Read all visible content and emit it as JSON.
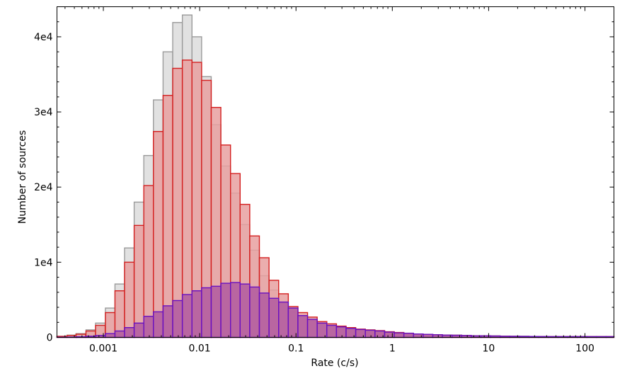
{
  "chart_data": {
    "type": "bar",
    "title": "",
    "xlabel": "Rate (c/s)",
    "ylabel": "Number of sources",
    "x_scale": "log",
    "xlim": [
      0.00033,
      200
    ],
    "ylim": [
      0,
      44000
    ],
    "grid": false,
    "bin_width_dex": 0.1,
    "x_ticks": [
      {
        "value": 0.001,
        "label": "0.001"
      },
      {
        "value": 0.01,
        "label": "0.01"
      },
      {
        "value": 0.1,
        "label": "0.1"
      },
      {
        "value": 1,
        "label": "1"
      },
      {
        "value": 10,
        "label": "10"
      },
      {
        "value": 100,
        "label": "100"
      }
    ],
    "y_ticks": [
      {
        "value": 0,
        "label": "0"
      },
      {
        "value": 10000,
        "label": "1e4"
      },
      {
        "value": 20000,
        "label": "2e4"
      },
      {
        "value": 30000,
        "label": "3e4"
      },
      {
        "value": 40000,
        "label": "4e4"
      }
    ],
    "bin_lefts": [
      0.00033,
      0.00042,
      0.00052,
      0.00066,
      0.00083,
      0.00105,
      0.00132,
      0.00166,
      0.00209,
      0.00263,
      0.00331,
      0.00417,
      0.00525,
      0.00661,
      0.00832,
      0.01047,
      0.01318,
      0.0166,
      0.0209,
      0.0263,
      0.0331,
      0.0417,
      0.0525,
      0.0661,
      0.0832,
      0.1047,
      0.1318,
      0.166,
      0.209,
      0.263,
      0.331,
      0.417,
      0.525,
      0.661,
      0.832,
      1.047,
      1.318,
      1.66,
      2.09,
      2.63,
      3.31,
      4.17,
      5.25,
      6.61,
      8.32,
      10.47,
      13.18,
      16.6,
      20.9,
      26.3,
      33.1,
      41.7,
      52.5,
      66.1,
      83.2,
      104.7,
      131.8,
      166
    ],
    "series": [
      {
        "fill": "#dcdcdc",
        "stroke": "#9a9a9a",
        "values": [
          150,
          300,
          500,
          1000,
          1900,
          3900,
          7100,
          11900,
          18000,
          24200,
          31600,
          38000,
          41900,
          42900,
          40000,
          34700,
          28300,
          22800,
          19200,
          15000,
          11600,
          8200,
          6300,
          4500,
          3400,
          2700,
          2200,
          1800,
          1500,
          1300,
          1150,
          1050,
          950,
          850,
          700,
          600,
          550,
          450,
          400,
          350,
          300,
          300,
          250,
          200,
          200,
          200,
          150,
          150,
          150,
          100,
          100,
          100,
          100,
          100,
          100,
          100,
          100,
          100
        ]
      },
      {
        "fill": "#e8a0a0",
        "stroke": "#d42020",
        "values": [
          130,
          250,
          420,
          850,
          1600,
          3300,
          6200,
          10000,
          14900,
          20200,
          27400,
          32200,
          35800,
          36900,
          36600,
          34200,
          30600,
          25600,
          21800,
          17700,
          13500,
          10600,
          7600,
          5800,
          4100,
          3300,
          2700,
          2100,
          1800,
          1500,
          1300,
          1100,
          1000,
          900,
          750,
          650,
          550,
          450,
          400,
          350,
          300,
          280,
          250,
          200,
          200,
          180,
          150,
          140,
          130,
          120,
          110,
          100,
          100,
          100,
          100,
          100,
          100,
          100
        ]
      },
      {
        "fill": "#b05aa0",
        "stroke": "#6a10c0",
        "values": [
          20,
          40,
          80,
          150,
          250,
          500,
          850,
          1300,
          1900,
          2800,
          3400,
          4200,
          4900,
          5700,
          6200,
          6600,
          6800,
          7200,
          7300,
          7100,
          6700,
          5900,
          5200,
          4700,
          3900,
          2900,
          2400,
          1900,
          1600,
          1400,
          1200,
          1050,
          950,
          850,
          700,
          600,
          550,
          450,
          400,
          350,
          300,
          280,
          250,
          200,
          200,
          180,
          150,
          140,
          130,
          120,
          110,
          100,
          100,
          100,
          100,
          100,
          100,
          100
        ]
      }
    ]
  }
}
